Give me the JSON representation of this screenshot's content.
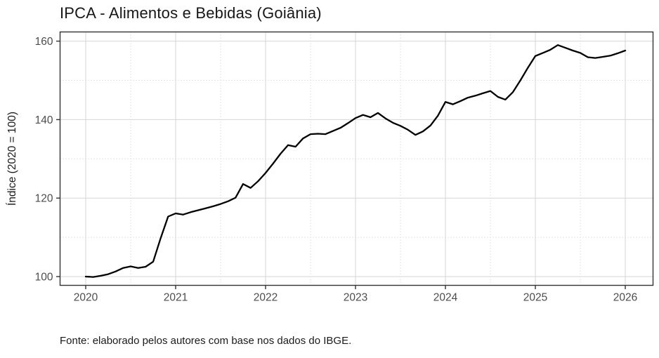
{
  "title": "IPCA - Alimentos e Bebidas (Goiânia)",
  "footer": "Fonte: elaborado pelos autores com base nos dados do IBGE.",
  "colors": {
    "line": "#000000",
    "grid_major": "#d6d6d6",
    "grid_minor": "#dedede",
    "panel_border": "#333333",
    "tick_label": "#4d4d4d",
    "axis_title": "#1a1a1a",
    "background": "#ffffff"
  },
  "chart_data": {
    "type": "line",
    "title": "IPCA - Alimentos e Bebidas (Goiânia)",
    "xlabel": "",
    "ylabel": "Índice (2020 = 100)",
    "x_tick_labels": [
      "2020",
      "2021",
      "2022",
      "2023",
      "2024",
      "2025",
      "2026"
    ],
    "y_tick_labels": [
      "100",
      "120",
      "140",
      "160"
    ],
    "y_major_ticks": [
      100,
      120,
      140,
      160
    ],
    "y_minor_ticks": [
      110,
      130,
      150
    ],
    "ylim": [
      97.7,
      162.4
    ],
    "grid": "major solid, minor dotted (half-year and 10-unit steps)",
    "legend": "none",
    "source_note": "Fonte: elaborado pelos autores com base nos dados do IBGE.",
    "series": [
      {
        "name": "IPCA Alimentos e Bebidas (Goiânia) — índice, 2020 = 100",
        "frequency": "monthly",
        "start": "2020-01",
        "end": "2026-01",
        "values": [
          100.0,
          99.9,
          100.2,
          100.6,
          101.3,
          102.2,
          102.6,
          102.2,
          102.5,
          103.8,
          109.8,
          115.3,
          116.1,
          115.8,
          116.4,
          116.9,
          117.4,
          117.9,
          118.5,
          119.2,
          120.1,
          123.6,
          122.6,
          124.3,
          126.4,
          128.8,
          131.3,
          133.5,
          133.1,
          135.2,
          136.3,
          136.4,
          136.3,
          137.1,
          137.9,
          139.1,
          140.4,
          141.2,
          140.6,
          141.7,
          140.3,
          139.2,
          138.4,
          137.4,
          136.1,
          137.0,
          138.5,
          141.0,
          144.5,
          143.9,
          144.7,
          145.6,
          146.1,
          146.7,
          147.3,
          145.8,
          145.1,
          147.0,
          150.0,
          153.2,
          156.2,
          157.0,
          157.8,
          159.0,
          158.3,
          157.6,
          157.0,
          155.9,
          155.7,
          156.0,
          156.3,
          156.9,
          157.6
        ]
      }
    ]
  }
}
